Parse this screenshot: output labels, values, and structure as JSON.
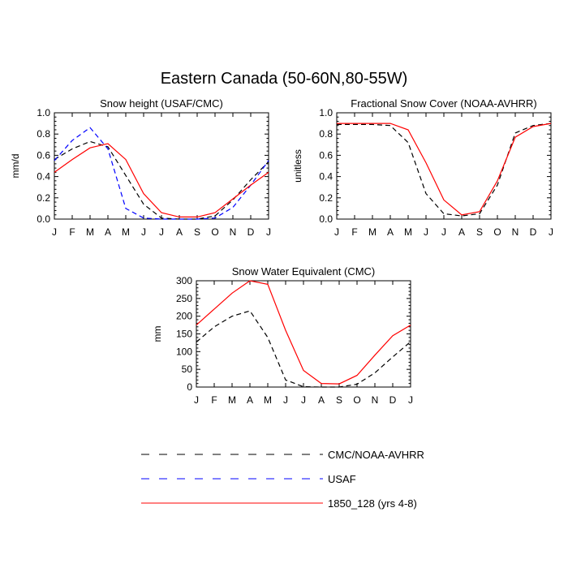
{
  "main_title": "Eastern Canada (50-60N,80-55W)",
  "legend": [
    {
      "label": "CMC/NOAA-AVHRR",
      "color": "#000000",
      "dash": "dashed"
    },
    {
      "label": "USAF",
      "color": "#0000ff",
      "dash": "dashed"
    },
    {
      "label": "1850_128 (yrs 4-8)",
      "color": "#ff0000",
      "dash": "solid"
    }
  ],
  "chart_data": [
    {
      "type": "line",
      "title": "Snow height (USAF/CMC)",
      "ylabel": "mm/d",
      "xlabel": "",
      "categories": [
        "J",
        "F",
        "M",
        "A",
        "M",
        "J",
        "J",
        "A",
        "S",
        "O",
        "N",
        "D",
        "J"
      ],
      "ylim": [
        0,
        1.0
      ],
      "yticks": [
        0.0,
        0.2,
        0.4,
        0.6,
        0.8,
        1.0
      ],
      "ytick_labels": [
        "0.0",
        "0.2",
        "0.4",
        "0.6",
        "0.8",
        "1.0"
      ],
      "series": [
        {
          "name": "CMC/NOAA-AVHRR",
          "color": "#000000",
          "dash": "dashed",
          "values": [
            0.56,
            0.66,
            0.73,
            0.68,
            0.41,
            0.14,
            0.01,
            0.0,
            0.0,
            0.03,
            0.18,
            0.37,
            0.54
          ]
        },
        {
          "name": "USAF",
          "color": "#0000ff",
          "dash": "dashed",
          "values": [
            0.55,
            0.74,
            0.86,
            0.66,
            0.1,
            0.01,
            0.0,
            0.0,
            0.0,
            0.01,
            0.11,
            0.32,
            0.55
          ]
        },
        {
          "name": "1850_128 (yrs 4-8)",
          "color": "#ff0000",
          "dash": "solid",
          "values": [
            0.44,
            0.56,
            0.67,
            0.71,
            0.56,
            0.24,
            0.06,
            0.02,
            0.02,
            0.06,
            0.19,
            0.32,
            0.44
          ]
        }
      ]
    },
    {
      "type": "line",
      "title": "Fractional Snow Cover (NOAA-AVHRR)",
      "ylabel": "unitless",
      "xlabel": "",
      "categories": [
        "J",
        "F",
        "M",
        "A",
        "M",
        "J",
        "J",
        "A",
        "S",
        "O",
        "N",
        "D",
        "J"
      ],
      "ylim": [
        0,
        1.0
      ],
      "yticks": [
        0.0,
        0.2,
        0.4,
        0.6,
        0.8,
        1.0
      ],
      "ytick_labels": [
        "0.0",
        "0.2",
        "0.4",
        "0.6",
        "0.8",
        "1.0"
      ],
      "series": [
        {
          "name": "CMC/NOAA-AVHRR",
          "color": "#000000",
          "dash": "dashed",
          "values": [
            0.89,
            0.89,
            0.89,
            0.88,
            0.72,
            0.24,
            0.05,
            0.03,
            0.05,
            0.32,
            0.81,
            0.88,
            0.9
          ]
        },
        {
          "name": "1850_128 (yrs 4-8)",
          "color": "#ff0000",
          "dash": "solid",
          "values": [
            0.9,
            0.9,
            0.9,
            0.9,
            0.84,
            0.53,
            0.18,
            0.04,
            0.07,
            0.36,
            0.77,
            0.87,
            0.9
          ]
        }
      ]
    },
    {
      "type": "line",
      "title": "Snow Water Equivalent (CMC)",
      "ylabel": "mm",
      "xlabel": "",
      "categories": [
        "J",
        "F",
        "M",
        "A",
        "M",
        "J",
        "J",
        "A",
        "S",
        "O",
        "N",
        "D",
        "J"
      ],
      "ylim": [
        0,
        300
      ],
      "yticks": [
        0,
        50,
        100,
        150,
        200,
        250,
        300
      ],
      "ytick_labels": [
        "0",
        "50",
        "100",
        "150",
        "200",
        "250",
        "300"
      ],
      "series": [
        {
          "name": "CMC/NOAA-AVHRR",
          "color": "#000000",
          "dash": "dashed",
          "values": [
            127,
            170,
            200,
            215,
            140,
            20,
            1,
            0,
            0,
            8,
            40,
            85,
            128
          ]
        },
        {
          "name": "1850_128 (yrs 4-8)",
          "color": "#ff0000",
          "dash": "solid",
          "values": [
            175,
            220,
            265,
            300,
            290,
            160,
            47,
            10,
            9,
            33,
            90,
            145,
            175
          ]
        }
      ]
    }
  ]
}
